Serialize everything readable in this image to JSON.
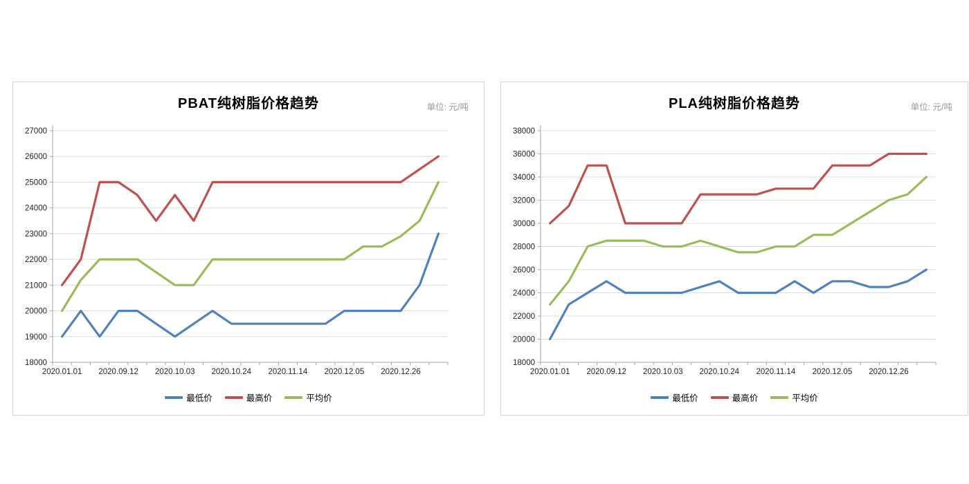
{
  "chart_data": [
    {
      "type": "line",
      "key": "pbat",
      "title": "PBAT纯树脂价格趋势",
      "unit_label": "单位:  元/吨",
      "xlabel": "",
      "ylabel": "",
      "ylim": [
        18000,
        27000
      ],
      "ytick_step": 1000,
      "grid": true,
      "legend_position": "bottom",
      "n_points": 21,
      "tick_labels": [
        "2020.01.01",
        "2020.09.12",
        "2020.10.03",
        "2020.10.24",
        "2020.11.14",
        "2020.12.05",
        "2020.12.26"
      ],
      "label_every": 3,
      "series": [
        {
          "key": "lowest-price",
          "name": "最低价",
          "color": "#4F81BD",
          "values": [
            19000,
            20000,
            19000,
            20000,
            20000,
            19500,
            19000,
            19500,
            20000,
            19500,
            19500,
            19500,
            19500,
            19500,
            19500,
            20000,
            20000,
            20000,
            20000,
            21000,
            23000
          ]
        },
        {
          "key": "highest-price",
          "name": "最高价",
          "color": "#C0504D",
          "values": [
            21000,
            22000,
            25000,
            25000,
            24500,
            23500,
            24500,
            23500,
            25000,
            25000,
            25000,
            25000,
            25000,
            25000,
            25000,
            25000,
            25000,
            25000,
            25000,
            25500,
            26000
          ]
        },
        {
          "key": "average-price",
          "name": "平均价",
          "color": "#9BBB59",
          "values": [
            20000,
            21200,
            22000,
            22000,
            22000,
            21500,
            21000,
            21000,
            22000,
            22000,
            22000,
            22000,
            22000,
            22000,
            22000,
            22000,
            22500,
            22500,
            22900,
            23500,
            25000
          ]
        }
      ]
    },
    {
      "type": "line",
      "key": "pla",
      "title": "PLA纯树脂价格趋势",
      "unit_label": "单位:  元/吨",
      "xlabel": "",
      "ylabel": "",
      "ylim": [
        18000,
        38000
      ],
      "ytick_step": 2000,
      "grid": true,
      "legend_position": "bottom",
      "n_points": 21,
      "tick_labels": [
        "2020.01.01",
        "2020.09.12",
        "2020.10.03",
        "2020.10.24",
        "2020.11.14",
        "2020.12.05",
        "2020.12.26"
      ],
      "label_every": 3,
      "series": [
        {
          "key": "lowest-price",
          "name": "最低价",
          "color": "#4F81BD",
          "values": [
            20000,
            23000,
            24000,
            25000,
            24000,
            24000,
            24000,
            24000,
            24500,
            25000,
            24000,
            24000,
            24000,
            25000,
            24000,
            25000,
            25000,
            24500,
            24500,
            25000,
            26000
          ]
        },
        {
          "key": "highest-price",
          "name": "最高价",
          "color": "#C0504D",
          "values": [
            30000,
            31500,
            35000,
            35000,
            30000,
            30000,
            30000,
            30000,
            32500,
            32500,
            32500,
            32500,
            33000,
            33000,
            33000,
            35000,
            35000,
            35000,
            36000,
            36000,
            36000
          ]
        },
        {
          "key": "average-price",
          "name": "平均价",
          "color": "#9BBB59",
          "values": [
            23000,
            25000,
            28000,
            28500,
            28500,
            28500,
            28000,
            28000,
            28500,
            28000,
            27500,
            27500,
            28000,
            28000,
            29000,
            29000,
            30000,
            31000,
            32000,
            32500,
            34000
          ]
        }
      ]
    }
  ],
  "style_colors": {
    "gridline": "#dcdcdc",
    "axis": "#a6a6a6",
    "tick_text": "#1f1f1f",
    "panel_border": "#d6d6d6"
  }
}
